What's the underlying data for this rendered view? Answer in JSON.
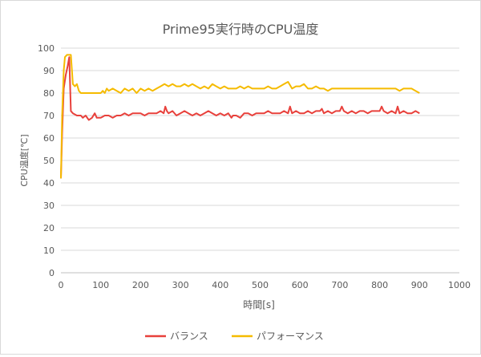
{
  "chart_data": {
    "type": "line",
    "title": "Prime95実行時のCPU温度",
    "xlabel": "時間[s]",
    "ylabel": "CPU温度[℃]",
    "xlim": [
      0,
      1000
    ],
    "ylim": [
      0,
      100
    ],
    "xticks": [
      0,
      100,
      200,
      300,
      400,
      500,
      600,
      700,
      800,
      900,
      1000
    ],
    "yticks": [
      0,
      10,
      20,
      30,
      40,
      50,
      60,
      70,
      80,
      90,
      100
    ],
    "grid": "horizontal",
    "legend": "bottom",
    "series": [
      {
        "name": "バランス",
        "color": "#e8413c",
        "points": [
          [
            0,
            42
          ],
          [
            3,
            62
          ],
          [
            7,
            82
          ],
          [
            12,
            88
          ],
          [
            17,
            92
          ],
          [
            21,
            96
          ],
          [
            25,
            72
          ],
          [
            30,
            71
          ],
          [
            40,
            70
          ],
          [
            50,
            70
          ],
          [
            55,
            69
          ],
          [
            62,
            70
          ],
          [
            70,
            68
          ],
          [
            78,
            69
          ],
          [
            85,
            71
          ],
          [
            90,
            69
          ],
          [
            100,
            69
          ],
          [
            110,
            70
          ],
          [
            120,
            70
          ],
          [
            130,
            69
          ],
          [
            140,
            70
          ],
          [
            150,
            70
          ],
          [
            160,
            71
          ],
          [
            170,
            70
          ],
          [
            180,
            71
          ],
          [
            190,
            71
          ],
          [
            200,
            71
          ],
          [
            210,
            70
          ],
          [
            220,
            71
          ],
          [
            230,
            71
          ],
          [
            240,
            71
          ],
          [
            250,
            72
          ],
          [
            258,
            71
          ],
          [
            262,
            74
          ],
          [
            266,
            72
          ],
          [
            270,
            71
          ],
          [
            280,
            72
          ],
          [
            290,
            70
          ],
          [
            300,
            71
          ],
          [
            310,
            72
          ],
          [
            320,
            71
          ],
          [
            330,
            70
          ],
          [
            340,
            71
          ],
          [
            350,
            70
          ],
          [
            360,
            71
          ],
          [
            370,
            72
          ],
          [
            380,
            71
          ],
          [
            390,
            70
          ],
          [
            400,
            71
          ],
          [
            410,
            70
          ],
          [
            420,
            71
          ],
          [
            428,
            69
          ],
          [
            432,
            70
          ],
          [
            440,
            70
          ],
          [
            450,
            69
          ],
          [
            460,
            71
          ],
          [
            470,
            71
          ],
          [
            480,
            70
          ],
          [
            490,
            71
          ],
          [
            500,
            71
          ],
          [
            510,
            71
          ],
          [
            520,
            72
          ],
          [
            530,
            71
          ],
          [
            540,
            71
          ],
          [
            550,
            71
          ],
          [
            560,
            72
          ],
          [
            570,
            71
          ],
          [
            575,
            74
          ],
          [
            580,
            71
          ],
          [
            590,
            72
          ],
          [
            600,
            71
          ],
          [
            610,
            71
          ],
          [
            620,
            72
          ],
          [
            630,
            71
          ],
          [
            640,
            72
          ],
          [
            650,
            72
          ],
          [
            655,
            73
          ],
          [
            660,
            71
          ],
          [
            670,
            72
          ],
          [
            680,
            71
          ],
          [
            690,
            72
          ],
          [
            700,
            72
          ],
          [
            705,
            74
          ],
          [
            710,
            72
          ],
          [
            720,
            71
          ],
          [
            730,
            72
          ],
          [
            740,
            71
          ],
          [
            750,
            72
          ],
          [
            760,
            72
          ],
          [
            770,
            71
          ],
          [
            780,
            72
          ],
          [
            790,
            72
          ],
          [
            800,
            72
          ],
          [
            805,
            74
          ],
          [
            810,
            72
          ],
          [
            820,
            71
          ],
          [
            830,
            72
          ],
          [
            840,
            71
          ],
          [
            845,
            74
          ],
          [
            850,
            71
          ],
          [
            860,
            72
          ],
          [
            870,
            71
          ],
          [
            880,
            71
          ],
          [
            890,
            72
          ],
          [
            900,
            71
          ]
        ]
      },
      {
        "name": "パフォーマンス",
        "color": "#f5bb00",
        "points": [
          [
            0,
            42
          ],
          [
            3,
            70
          ],
          [
            7,
            90
          ],
          [
            10,
            96
          ],
          [
            15,
            97
          ],
          [
            20,
            97
          ],
          [
            25,
            97
          ],
          [
            30,
            84
          ],
          [
            35,
            83
          ],
          [
            40,
            84
          ],
          [
            45,
            81
          ],
          [
            50,
            80
          ],
          [
            55,
            80
          ],
          [
            60,
            80
          ],
          [
            70,
            80
          ],
          [
            80,
            80
          ],
          [
            90,
            80
          ],
          [
            100,
            80
          ],
          [
            105,
            81
          ],
          [
            110,
            80
          ],
          [
            115,
            82
          ],
          [
            120,
            81
          ],
          [
            130,
            82
          ],
          [
            140,
            81
          ],
          [
            150,
            80
          ],
          [
            160,
            82
          ],
          [
            170,
            81
          ],
          [
            180,
            82
          ],
          [
            190,
            80
          ],
          [
            200,
            82
          ],
          [
            210,
            81
          ],
          [
            220,
            82
          ],
          [
            230,
            81
          ],
          [
            240,
            82
          ],
          [
            250,
            83
          ],
          [
            260,
            84
          ],
          [
            270,
            83
          ],
          [
            280,
            84
          ],
          [
            290,
            83
          ],
          [
            300,
            83
          ],
          [
            310,
            84
          ],
          [
            320,
            83
          ],
          [
            330,
            84
          ],
          [
            340,
            83
          ],
          [
            350,
            82
          ],
          [
            360,
            83
          ],
          [
            370,
            82
          ],
          [
            380,
            84
          ],
          [
            390,
            83
          ],
          [
            400,
            82
          ],
          [
            410,
            83
          ],
          [
            420,
            82
          ],
          [
            430,
            82
          ],
          [
            440,
            82
          ],
          [
            450,
            83
          ],
          [
            460,
            82
          ],
          [
            470,
            83
          ],
          [
            480,
            82
          ],
          [
            490,
            82
          ],
          [
            500,
            82
          ],
          [
            510,
            82
          ],
          [
            520,
            83
          ],
          [
            530,
            82
          ],
          [
            540,
            82
          ],
          [
            550,
            83
          ],
          [
            560,
            84
          ],
          [
            570,
            85
          ],
          [
            580,
            82
          ],
          [
            590,
            83
          ],
          [
            600,
            83
          ],
          [
            610,
            84
          ],
          [
            620,
            82
          ],
          [
            630,
            82
          ],
          [
            640,
            83
          ],
          [
            650,
            82
          ],
          [
            660,
            82
          ],
          [
            670,
            81
          ],
          [
            680,
            82
          ],
          [
            690,
            82
          ],
          [
            700,
            82
          ],
          [
            710,
            82
          ],
          [
            720,
            82
          ],
          [
            730,
            82
          ],
          [
            740,
            82
          ],
          [
            750,
            82
          ],
          [
            760,
            82
          ],
          [
            770,
            82
          ],
          [
            780,
            82
          ],
          [
            790,
            82
          ],
          [
            800,
            82
          ],
          [
            810,
            82
          ],
          [
            820,
            82
          ],
          [
            830,
            82
          ],
          [
            840,
            82
          ],
          [
            850,
            81
          ],
          [
            860,
            82
          ],
          [
            870,
            82
          ],
          [
            880,
            82
          ],
          [
            890,
            81
          ],
          [
            900,
            80
          ]
        ]
      }
    ]
  }
}
